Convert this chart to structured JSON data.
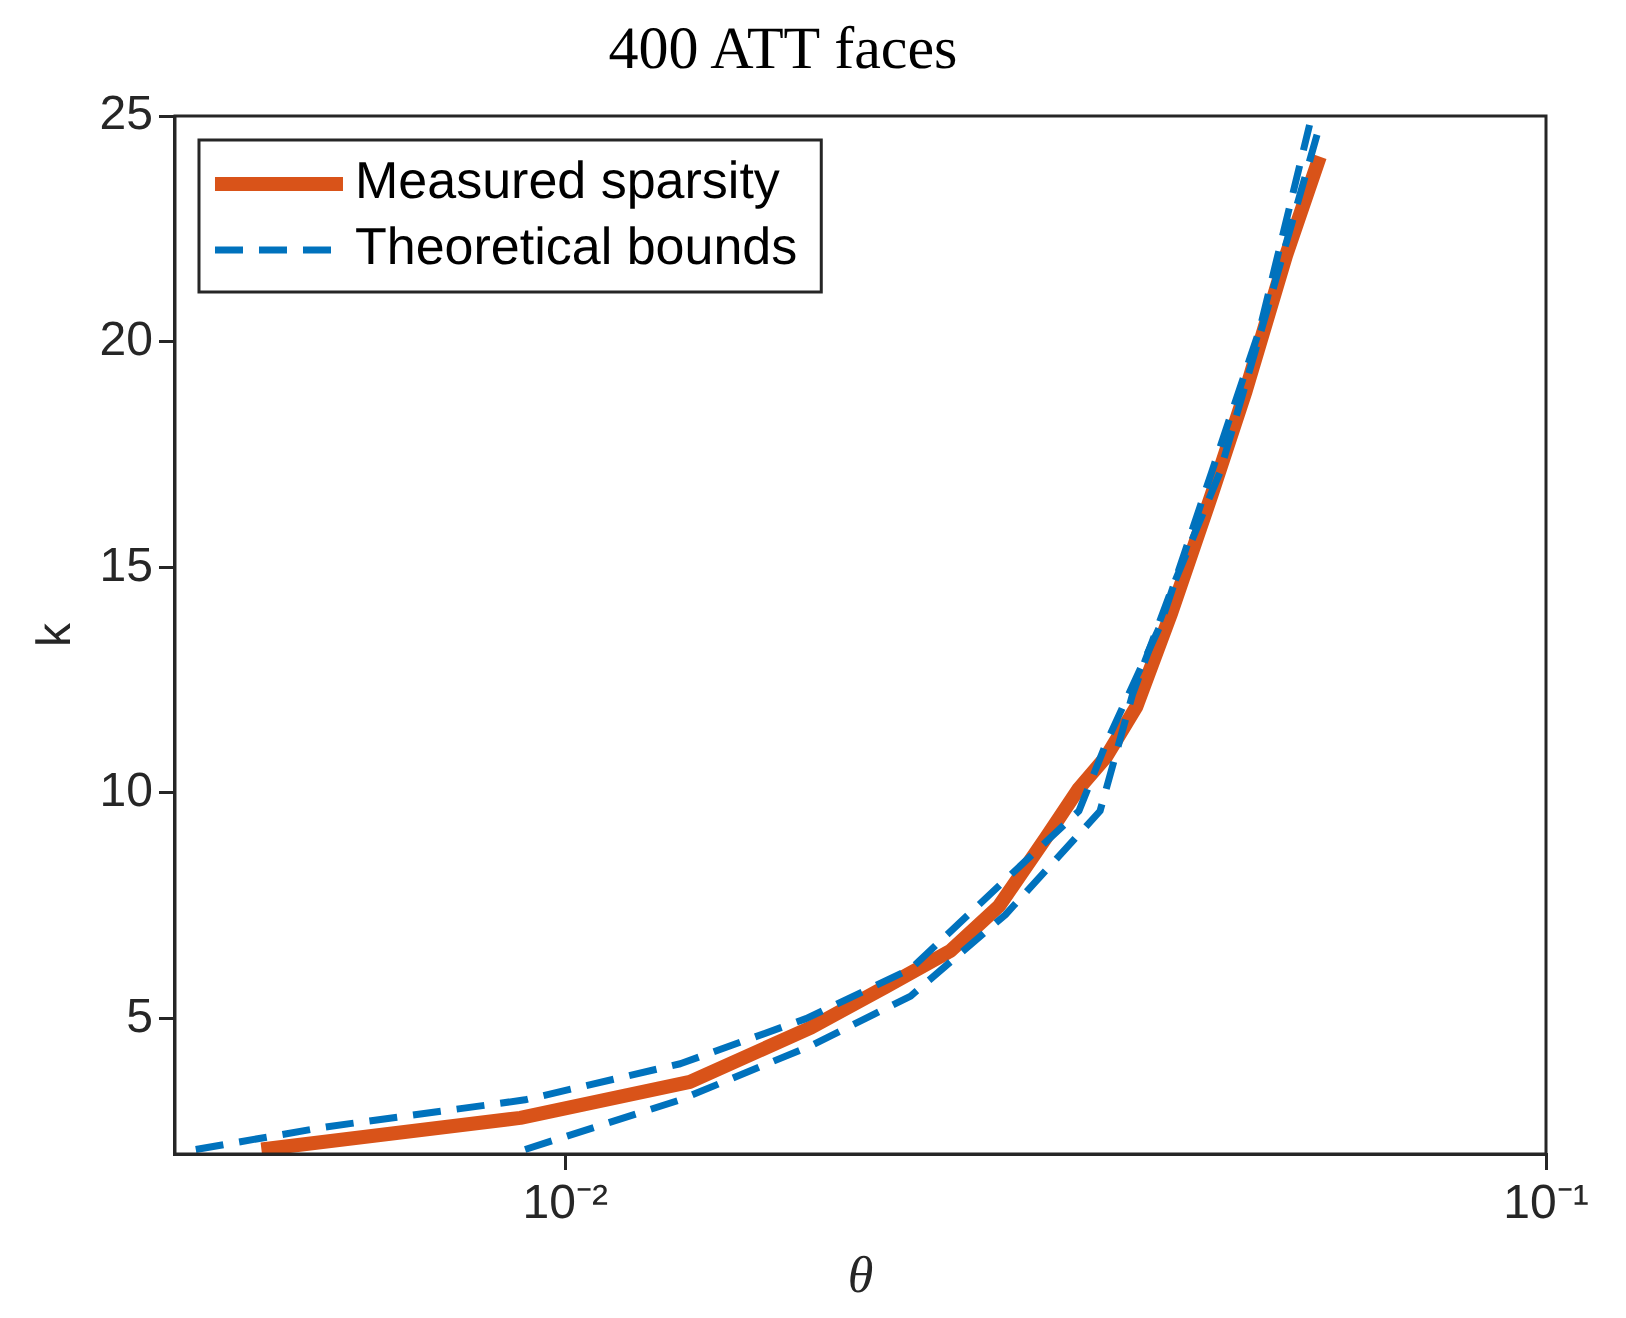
{
  "chart_data": {
    "type": "line",
    "title": "400 ATT faces",
    "xlabel": "θ",
    "ylabel": "k",
    "log": "x",
    "xlim": [
      0.004,
      0.1
    ],
    "xticks": [
      {
        "value": 0.01,
        "label": "10⁻²"
      },
      {
        "value": 0.1,
        "label": "10⁻¹"
      }
    ],
    "ylim": [
      2,
      25
    ],
    "yticks": [
      5,
      10,
      15,
      20,
      25
    ],
    "grid": false,
    "legend": "top left",
    "marker": "none",
    "series": [
      {
        "name": "Measured sparsity",
        "color": "#d95319",
        "line_style": "solid",
        "x": [
          0.0049,
          0.009,
          0.0134,
          0.0178,
          0.0212,
          0.0247,
          0.0277,
          0.0309,
          0.0334,
          0.0356,
          0.0382,
          0.0415,
          0.0456,
          0.0494,
          0.0543,
          0.0588
        ],
        "values": [
          2.1,
          2.8,
          3.6,
          4.8,
          5.7,
          6.5,
          7.5,
          9.0,
          10.1,
          10.8,
          11.9,
          14.0,
          16.6,
          18.9,
          21.9,
          24.1
        ]
      },
      {
        "name": "Theoretical bounds",
        "color": "#0072bd",
        "line_style": "dashed",
        "x": [
          0.0042,
          0.0057,
          0.0091,
          0.0131,
          0.0176,
          0.0225,
          0.0285,
          0.0334,
          0.0356,
          0.0404,
          0.0456,
          0.0511,
          0.0574
        ],
        "values": [
          2.1,
          2.6,
          3.2,
          4.0,
          5.0,
          6.1,
          8.2,
          9.6,
          11.1,
          13.7,
          17.1,
          20.3,
          24.8
        ]
      },
      {
        "color": "#0072bd",
        "line_style": "dashed",
        "x": [
          0.0091,
          0.0131,
          0.0178,
          0.0225,
          0.0281,
          0.0351,
          0.0379,
          0.0415,
          0.0465,
          0.0518,
          0.0588
        ],
        "values": [
          2.1,
          3.2,
          4.4,
          5.5,
          7.3,
          9.6,
          12.2,
          14.5,
          17.1,
          20.6,
          24.8
        ]
      }
    ]
  }
}
